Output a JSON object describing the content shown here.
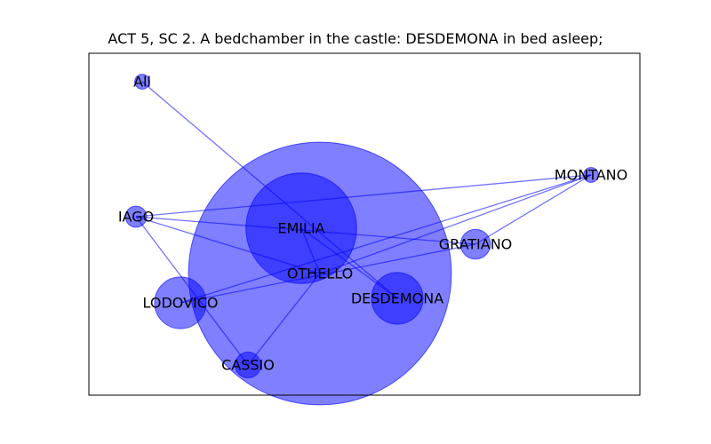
{
  "title": "ACT 5, SC 2. A bedchamber in the castle: DESDEMONA in bed asleep;",
  "colors": {
    "node": "#0000ff",
    "edge": "#0000ff",
    "frame": "#000000"
  },
  "chart_data": {
    "type": "network",
    "nodes": [
      {
        "id": "All",
        "label": "All",
        "weight": 1
      },
      {
        "id": "MONTANO",
        "label": "MONTANO",
        "weight": 1
      },
      {
        "id": "IAGO",
        "label": "IAGO",
        "weight": 2
      },
      {
        "id": "EMILIA",
        "label": "EMILIA",
        "weight": 55
      },
      {
        "id": "GRATIANO",
        "label": "GRATIANO",
        "weight": 4
      },
      {
        "id": "OTHELLO",
        "label": "OTHELLO",
        "weight": 310
      },
      {
        "id": "LODOVICO",
        "label": "LODOVICO",
        "weight": 12
      },
      {
        "id": "DESDEMONA",
        "label": "DESDEMONA",
        "weight": 12
      },
      {
        "id": "CASSIO",
        "label": "CASSIO",
        "weight": 3
      }
    ],
    "edges": [
      [
        "All",
        "DESDEMONA"
      ],
      [
        "MONTANO",
        "IAGO"
      ],
      [
        "MONTANO",
        "GRATIANO"
      ],
      [
        "MONTANO",
        "OTHELLO"
      ],
      [
        "MONTANO",
        "LODOVICO"
      ],
      [
        "IAGO",
        "GRATIANO"
      ],
      [
        "IAGO",
        "OTHELLO"
      ],
      [
        "IAGO",
        "CASSIO"
      ],
      [
        "EMILIA",
        "OTHELLO"
      ],
      [
        "EMILIA",
        "DESDEMONA"
      ],
      [
        "OTHELLO",
        "CASSIO"
      ],
      [
        "GRATIANO",
        "LODOVICO"
      ]
    ]
  }
}
